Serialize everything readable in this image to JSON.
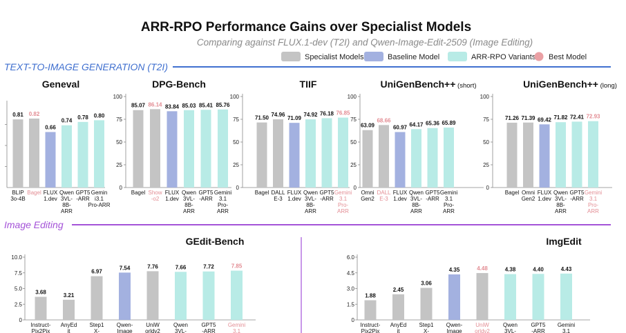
{
  "header": {
    "title": "ARR-RPO Performance Gains over Specialist Models",
    "subtitle": "Comparing against FLUX.1-dev (T2I) and Qwen-Image-Edit-2509 (Image Editing)"
  },
  "legend": [
    {
      "label": "Specialist Models",
      "color": "#c4c4c4",
      "shape": "rect"
    },
    {
      "label": "Baseline Model",
      "color": "#a3b1e0",
      "shape": "rect"
    },
    {
      "label": "ARR-RPO Variants",
      "color": "#b8ebe6",
      "shape": "rect"
    },
    {
      "label": "Best Model",
      "color": "#eaa0a4",
      "shape": "circle"
    }
  ],
  "sections": {
    "t2i": {
      "label": "TEXT-TO-IMAGE GENERATION (T2I)",
      "color": "#3f6fcf"
    },
    "edit": {
      "label": "Image Editing",
      "color": "#a452d8"
    }
  },
  "colors": {
    "specialist": "#c4c4c4",
    "baseline": "#a3b1e0",
    "arr": "#b8ebe6",
    "best_text": "#e38d94",
    "axis": "#888888"
  },
  "chart_data": [
    {
      "id": "geneval",
      "type": "bar",
      "title": "Geneval",
      "ylim": [
        0,
        1
      ],
      "yticks": [],
      "categories": [
        "BLIP\n3o-4B",
        "Bagel",
        "FLUX\n1.dev",
        "Qwen\n3VL-\n8B-\nARR",
        "GPT5\n-ARR",
        "Gemin\ni3.1\nPro-ARR"
      ],
      "values": [
        0.81,
        0.82,
        0.66,
        0.74,
        0.78,
        0.8
      ],
      "labels": [
        "0.81",
        "0.82",
        "0.66",
        "0.74",
        "0.78",
        "0.80"
      ],
      "kinds": [
        "specialist",
        "specialist",
        "baseline",
        "arr",
        "arr",
        "arr"
      ],
      "best_index": 1
    },
    {
      "id": "dpg",
      "type": "bar",
      "title": "DPG-Bench",
      "ylim": [
        0,
        100
      ],
      "yticks": [
        0,
        25,
        50,
        75,
        100
      ],
      "categories": [
        "Bagel",
        "Show\n-o2",
        "FLUX\n1.dev",
        "Qwen\n3VL-\n8B-\nARR",
        "GPT5\n-ARR",
        "Gemini\n3.1\nPro-\nARR"
      ],
      "values": [
        85.07,
        86.14,
        83.84,
        85.03,
        85.41,
        85.76
      ],
      "labels": [
        "85.07",
        "86.14",
        "83.84",
        "85.03",
        "85.41",
        "85.76"
      ],
      "kinds": [
        "specialist",
        "specialist",
        "baseline",
        "arr",
        "arr",
        "arr"
      ],
      "best_index": 1
    },
    {
      "id": "tiif",
      "type": "bar",
      "title": "TIIF",
      "ylim": [
        0,
        100
      ],
      "yticks": [
        0,
        25,
        50,
        75,
        100
      ],
      "categories": [
        "Bagel",
        "DALL\nE-3",
        "FLUX\n1.dev",
        "Qwen\n3VL-\n8B-\nARR",
        "GPT5\n-ARR",
        "Gemini\n3.1\nPro-\nARR"
      ],
      "values": [
        71.5,
        74.96,
        71.09,
        74.92,
        76.18,
        76.85
      ],
      "labels": [
        "71.50",
        "74.96",
        "71.09",
        "74.92",
        "76.18",
        "76.85"
      ],
      "kinds": [
        "specialist",
        "specialist",
        "baseline",
        "arr",
        "arr",
        "arr"
      ],
      "best_index": 5
    },
    {
      "id": "ugb_short",
      "type": "bar",
      "title": "UniGenBench++",
      "title_suffix": "(short)",
      "ylim": [
        0,
        100
      ],
      "yticks": [
        0,
        25,
        50,
        75,
        100
      ],
      "categories": [
        "Omni\nGen2",
        "DALL\nE-3",
        "FLUX\n1.dev",
        "Qwen\n3VL-\n8B-\nARR",
        "GPT5\n-ARR",
        "Gemini\n3.1\nPro-\nARR"
      ],
      "values": [
        63.09,
        68.66,
        60.97,
        64.17,
        65.36,
        65.89
      ],
      "labels": [
        "63.09",
        "68.66",
        "60.97",
        "64.17",
        "65.36",
        "65.89"
      ],
      "kinds": [
        "specialist",
        "specialist",
        "baseline",
        "arr",
        "arr",
        "arr"
      ],
      "best_index": 1
    },
    {
      "id": "ugb_long",
      "type": "bar",
      "title": "UniGenBench++",
      "title_suffix": "(long)",
      "ylim": [
        0,
        100
      ],
      "yticks": [
        0,
        25,
        50,
        75,
        100
      ],
      "categories": [
        "Bagel",
        "Omni\nGen2",
        "FLUX\n1.dev",
        "Qwen\n3VL-\n8B-\nARR",
        "GPT5\n-ARR",
        "Gemini\n3.1\nPro-\nARR"
      ],
      "values": [
        71.26,
        71.39,
        69.42,
        71.82,
        72.41,
        72.93
      ],
      "labels": [
        "71.26",
        "71.39",
        "69.42",
        "71.82",
        "72.41",
        "72.93"
      ],
      "kinds": [
        "specialist",
        "specialist",
        "baseline",
        "arr",
        "arr",
        "arr"
      ],
      "best_index": 5
    },
    {
      "id": "gedit",
      "type": "bar",
      "title": "GEdit-Bench",
      "ylim": [
        0,
        10
      ],
      "yticks": [
        0,
        2.5,
        5.0,
        7.5,
        10.0
      ],
      "ytick_labels": [
        "0",
        "2.5",
        "5.0",
        "7.5",
        "10.0"
      ],
      "categories": [
        "Instruct-\nPix2Pix",
        "AnyEd\nit",
        "Step1\nX-",
        "Qwen-\nImage",
        "UniW\norldv2",
        "Qwen\n3VL-",
        "GPT5\n-ARR",
        "Gemini\n3.1"
      ],
      "values": [
        3.68,
        3.21,
        6.97,
        7.54,
        7.76,
        7.66,
        7.72,
        7.85
      ],
      "labels": [
        "3.68",
        "3.21",
        "6.97",
        "7.54",
        "7.76",
        "7.66",
        "7.72",
        "7.85"
      ],
      "kinds": [
        "specialist",
        "specialist",
        "specialist",
        "baseline",
        "specialist",
        "arr",
        "arr",
        "arr"
      ],
      "best_index": 7
    },
    {
      "id": "imgedit",
      "type": "bar",
      "title": "ImgEdit",
      "ylim": [
        0,
        6
      ],
      "yticks": [
        0,
        1.5,
        3.0,
        4.5,
        6.0
      ],
      "ytick_labels": [
        "0",
        "1.5",
        "3.0",
        "4.5",
        "6.0"
      ],
      "categories": [
        "Instruct-\nPix2Pix",
        "AnyEd\nit",
        "Step1\nX-",
        "Qwen-\nImage",
        "UniW\norldv2",
        "Qwen\n3VL-",
        "GPT5\n-ARR",
        "Gemini\n3.1"
      ],
      "values": [
        1.88,
        2.45,
        3.06,
        4.35,
        4.48,
        4.38,
        4.4,
        4.43
      ],
      "labels": [
        "1.88",
        "2.45",
        "3.06",
        "4.35",
        "4.48",
        "4.38",
        "4.40",
        "4.43"
      ],
      "kinds": [
        "specialist",
        "specialist",
        "specialist",
        "baseline",
        "specialist",
        "arr",
        "arr",
        "arr"
      ],
      "best_index": 4
    }
  ]
}
